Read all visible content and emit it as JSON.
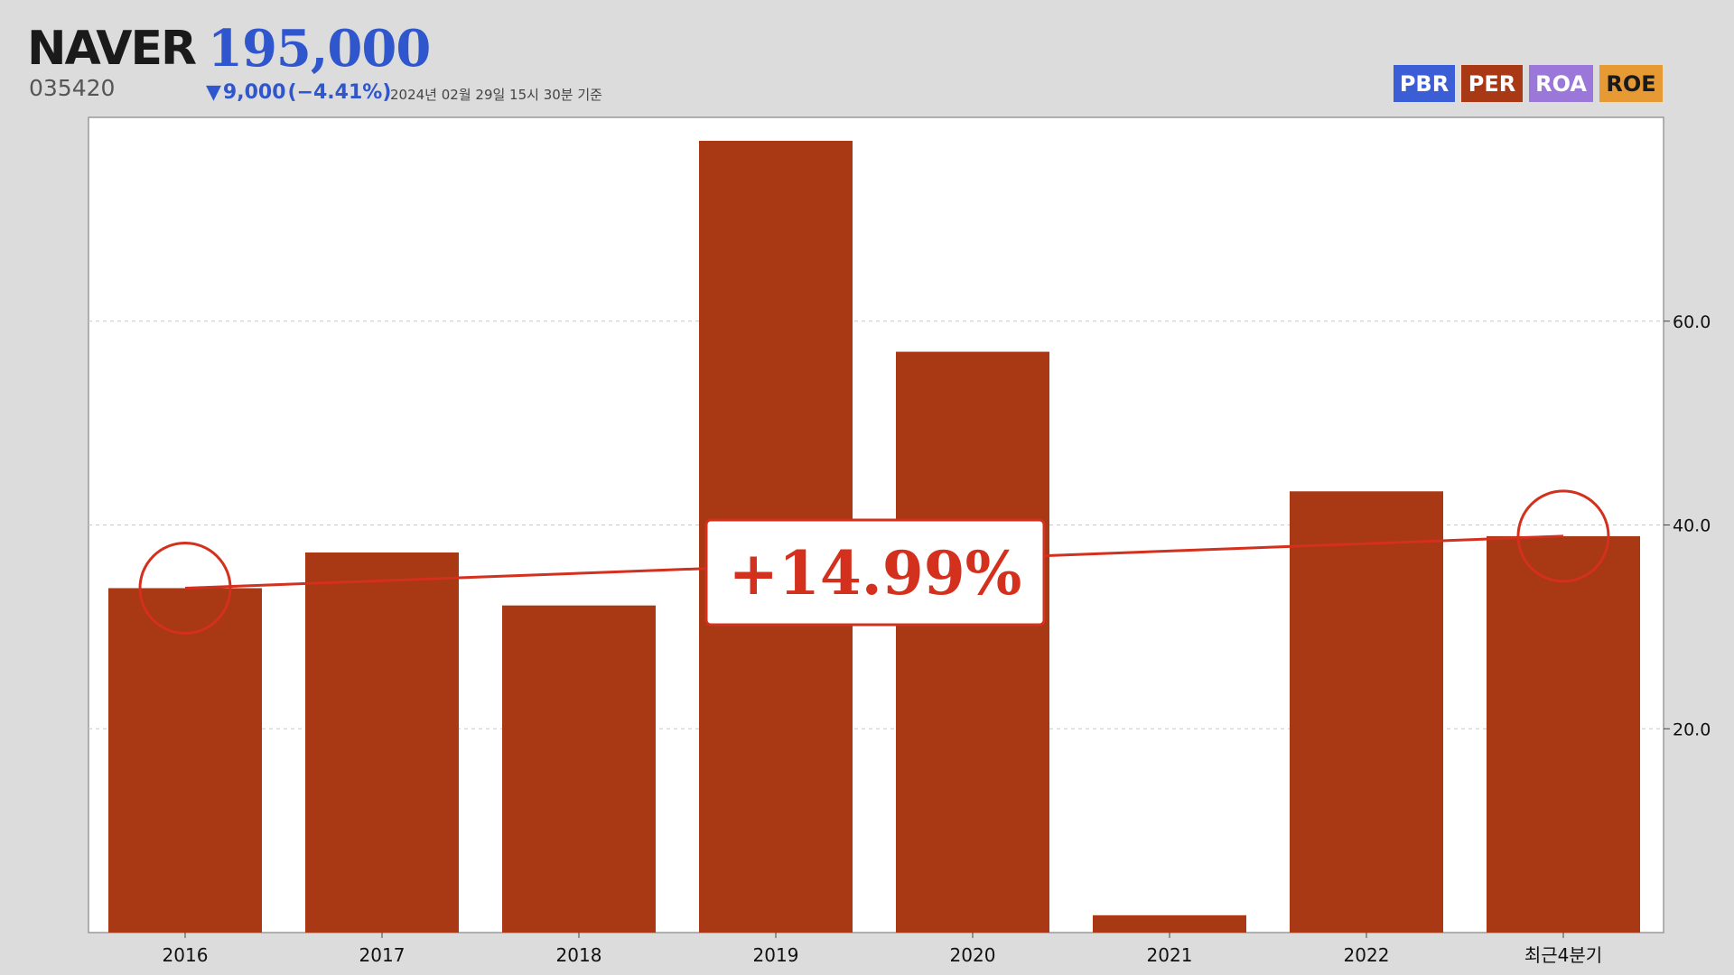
{
  "header": {
    "company": "NAVER",
    "code": "035420",
    "price": "195,000",
    "change_symbol": "▼",
    "change_value": "9,000",
    "change_pct": "(−4.41%)",
    "as_of": "2024년 02월 29일 15시 30분 기준"
  },
  "tabs": [
    {
      "label": "PBR",
      "color": "#3b5ed6"
    },
    {
      "label": "PER",
      "color": "#a93815"
    },
    {
      "label": "ROA",
      "color": "#9a77d8"
    },
    {
      "label": "ROE",
      "color": "#e79a33"
    }
  ],
  "chart_data": {
    "type": "bar",
    "categories": [
      "2016",
      "2017",
      "2018",
      "2019",
      "2020",
      "2021",
      "2022",
      "최근4분기"
    ],
    "values": [
      33.8,
      37.3,
      32.1,
      77.7,
      57.0,
      1.7,
      43.3,
      38.9
    ],
    "y_ticks": [
      "20.0",
      "40.0",
      "60.0"
    ],
    "ylim": [
      0,
      80
    ],
    "bar_color": "#a93815",
    "grid": true,
    "y_axis_side": "right",
    "trend": {
      "label": "+14.99%",
      "from_category": "2016",
      "to_category": "최근4분기",
      "color": "#d3301d"
    }
  }
}
